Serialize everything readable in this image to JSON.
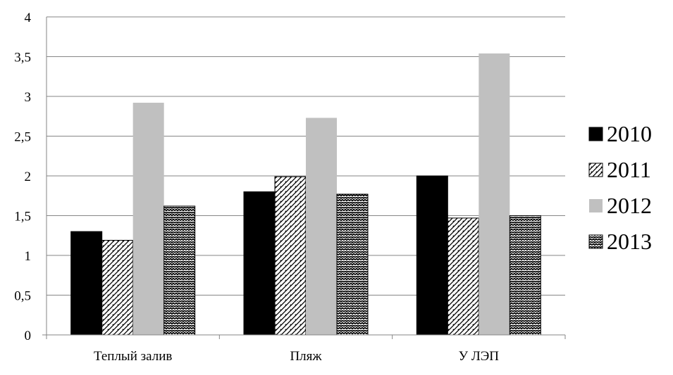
{
  "chart_data": {
    "type": "bar",
    "categories": [
      "Теплый залив",
      "Пляж",
      "У ЛЭП"
    ],
    "series": [
      {
        "name": "2010",
        "values": [
          1.3,
          1.8,
          2.0
        ],
        "pattern": "solid-black"
      },
      {
        "name": "2011",
        "values": [
          1.19,
          1.99,
          1.47
        ],
        "pattern": "diagonal-hatch"
      },
      {
        "name": "2012",
        "values": [
          2.92,
          2.73,
          3.54
        ],
        "pattern": "solid-gray"
      },
      {
        "name": "2013",
        "values": [
          1.62,
          1.77,
          1.5
        ],
        "pattern": "zigzag"
      }
    ],
    "ylim": [
      0,
      4
    ],
    "yticks": [
      "0",
      "0,5",
      "1",
      "1,5",
      "2",
      "2,5",
      "3",
      "3,5",
      "4"
    ],
    "grid": true,
    "legend": "right",
    "colors": {
      "bar_2010": "#000000",
      "bar_2012": "#c0c0c0",
      "grid": "#868686",
      "axis": "#868686"
    }
  }
}
